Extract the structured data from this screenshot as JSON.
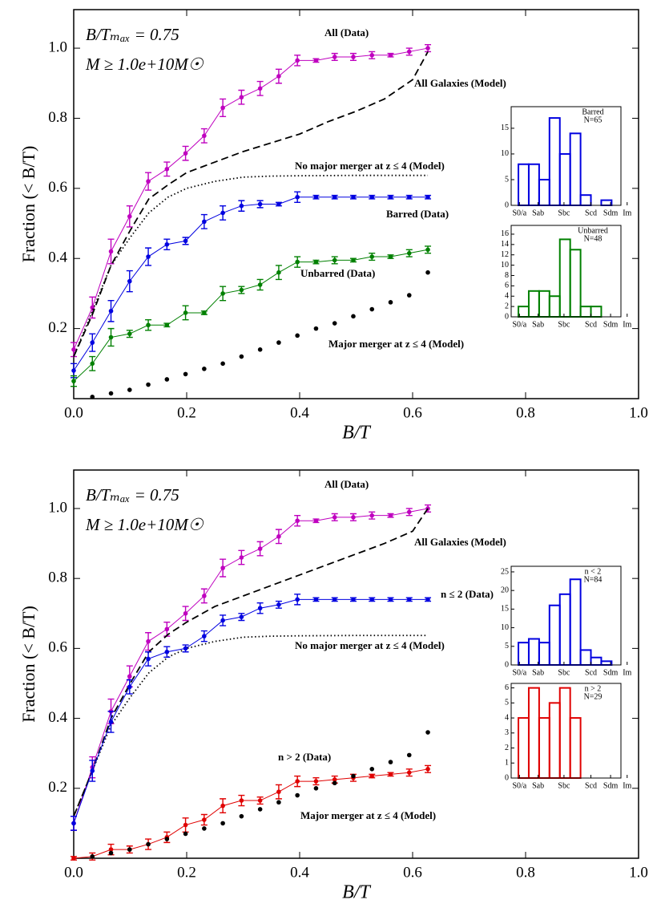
{
  "chart_data": [
    {
      "type": "line",
      "annotations": [
        "B/Tₘₐₓ = 0.75",
        "M ≥ 1.0e+10M☉"
      ],
      "x_label": "B/T",
      "y_label": "Fraction (< B/T)",
      "xlim": [
        0,
        1
      ],
      "ylim": [
        0,
        1.11
      ],
      "xticks": [
        {
          "value": 0,
          "label": "0.0"
        },
        0.2,
        0.4,
        0.6,
        0.8,
        {
          "value": 1,
          "label": "1.0"
        }
      ],
      "yticks": [
        0.2,
        0.4,
        0.6,
        0.8,
        {
          "value": 1,
          "label": "1.0"
        }
      ],
      "series": [
        {
          "name": "All (Data)",
          "color": "#bf00bf",
          "style": "solid",
          "x": [
            0,
            0.033,
            0.066,
            0.099,
            0.132,
            0.165,
            0.198,
            0.231,
            0.264,
            0.297,
            0.33,
            0.363,
            0.396,
            0.429,
            0.462,
            0.495,
            0.528,
            0.561,
            0.594,
            0.627
          ],
          "values": [
            0.14,
            0.26,
            0.42,
            0.52,
            0.62,
            0.655,
            0.7,
            0.75,
            0.83,
            0.86,
            0.885,
            0.92,
            0.965,
            0.965,
            0.975,
            0.975,
            0.98,
            0.98,
            0.99,
            1.0
          ],
          "errors": [
            0.02,
            0.03,
            0.035,
            0.03,
            0.025,
            0.02,
            0.02,
            0.02,
            0.025,
            0.02,
            0.02,
            0.02,
            0.015,
            0.005,
            0.01,
            0.01,
            0.01,
            0.005,
            0.01,
            0.01
          ]
        },
        {
          "name": "All Galaxies (Model)",
          "color": "#000000",
          "style": "dashed",
          "x": [
            0,
            0.033,
            0.066,
            0.1,
            0.133,
            0.167,
            0.2,
            0.25,
            0.3,
            0.35,
            0.4,
            0.45,
            0.5,
            0.55,
            0.6,
            0.627
          ],
          "values": [
            0.12,
            0.24,
            0.38,
            0.48,
            0.57,
            0.61,
            0.645,
            0.675,
            0.705,
            0.73,
            0.755,
            0.79,
            0.82,
            0.855,
            0.91,
            0.99
          ]
        },
        {
          "name": "No major merger at z ≤ 4 (Model)",
          "color": "#000000",
          "style": "dotted",
          "x": [
            0,
            0.033,
            0.066,
            0.1,
            0.133,
            0.167,
            0.2,
            0.25,
            0.3,
            0.35,
            0.4,
            0.5,
            0.627
          ],
          "values": [
            0.12,
            0.25,
            0.38,
            0.46,
            0.53,
            0.575,
            0.6,
            0.62,
            0.632,
            0.635,
            0.636,
            0.637,
            0.637
          ]
        },
        {
          "name": "Barred (Data)",
          "color": "#0000e0",
          "style": "solid",
          "x": [
            0,
            0.033,
            0.066,
            0.099,
            0.132,
            0.165,
            0.198,
            0.231,
            0.264,
            0.297,
            0.33,
            0.363,
            0.396,
            0.429,
            0.462,
            0.495,
            0.528,
            0.561,
            0.594,
            0.627
          ],
          "values": [
            0.08,
            0.16,
            0.25,
            0.335,
            0.405,
            0.44,
            0.45,
            0.505,
            0.53,
            0.55,
            0.555,
            0.555,
            0.575,
            0.575,
            0.575,
            0.575,
            0.575,
            0.575,
            0.575,
            0.575
          ],
          "errors": [
            0.02,
            0.025,
            0.03,
            0.03,
            0.025,
            0.015,
            0.01,
            0.02,
            0.02,
            0.015,
            0.01,
            0.005,
            0.015,
            0.005,
            0.005,
            0.005,
            0.005,
            0.005,
            0.005,
            0.005
          ]
        },
        {
          "name": "Unbarred (Data)",
          "color": "#008000",
          "style": "solid",
          "x": [
            0,
            0.033,
            0.066,
            0.099,
            0.132,
            0.165,
            0.198,
            0.231,
            0.264,
            0.297,
            0.33,
            0.363,
            0.396,
            0.429,
            0.462,
            0.495,
            0.528,
            0.561,
            0.594,
            0.627
          ],
          "values": [
            0.05,
            0.1,
            0.175,
            0.185,
            0.21,
            0.21,
            0.245,
            0.245,
            0.3,
            0.31,
            0.325,
            0.36,
            0.39,
            0.39,
            0.395,
            0.395,
            0.405,
            0.405,
            0.415,
            0.425
          ],
          "errors": [
            0.015,
            0.02,
            0.025,
            0.01,
            0.015,
            0.005,
            0.02,
            0.005,
            0.02,
            0.01,
            0.015,
            0.02,
            0.015,
            0.005,
            0.01,
            0.005,
            0.01,
            0.005,
            0.01,
            0.01
          ]
        },
        {
          "name": "Major merger at z ≤ 4 (Model)",
          "color": "#000000",
          "style": "markers",
          "x": [
            0.033,
            0.066,
            0.099,
            0.132,
            0.165,
            0.198,
            0.231,
            0.264,
            0.297,
            0.33,
            0.363,
            0.396,
            0.429,
            0.462,
            0.495,
            0.528,
            0.561,
            0.594,
            0.627
          ],
          "values": [
            0.005,
            0.015,
            0.025,
            0.04,
            0.055,
            0.07,
            0.085,
            0.1,
            0.12,
            0.14,
            0.16,
            0.18,
            0.2,
            0.215,
            0.235,
            0.255,
            0.275,
            0.295,
            0.36
          ]
        }
      ]
    },
    {
      "type": "histogram",
      "annotations": [
        "Barred",
        "N=65"
      ],
      "color": "#0000e0",
      "bins": [
        0,
        1,
        2,
        3,
        4,
        5,
        6,
        7,
        8,
        9
      ],
      "values": [
        8,
        8,
        5,
        17,
        10,
        14,
        2,
        0,
        1
      ],
      "xlim": [
        -0.7,
        9.9
      ],
      "ylim": [
        0,
        19.2
      ],
      "xticks": [
        {
          "value": 0.1,
          "label": "S0/a"
        },
        {
          "value": 1.9,
          "label": "Sab"
        },
        {
          "value": 4.4,
          "label": "Sbc"
        },
        {
          "value": 7,
          "label": "Scd"
        },
        {
          "value": 8.9,
          "label": "Sdm"
        },
        {
          "value": 10.5,
          "label": "Im"
        }
      ],
      "yticks": [
        0,
        5,
        10,
        15
      ]
    },
    {
      "type": "histogram",
      "annotations": [
        "Unbarred",
        "N=48"
      ],
      "color": "#008000",
      "bins": [
        0,
        1,
        2,
        3,
        4,
        5,
        6,
        7,
        8,
        9
      ],
      "values": [
        2,
        5,
        5,
        4,
        15,
        13,
        2,
        2,
        0
      ],
      "xlim": [
        -0.7,
        9.9
      ],
      "ylim": [
        0,
        17.7
      ],
      "xticks": [
        {
          "value": 0.1,
          "label": "S0/a"
        },
        {
          "value": 1.9,
          "label": "Sab"
        },
        {
          "value": 4.4,
          "label": "Sbc"
        },
        {
          "value": 7,
          "label": "Scd"
        },
        {
          "value": 8.9,
          "label": "Sdm"
        },
        {
          "value": 10.5,
          "label": "Im"
        }
      ],
      "yticks": [
        0,
        2,
        4,
        6,
        8,
        10,
        12,
        14,
        16
      ]
    },
    {
      "type": "line",
      "annotations": [
        "B/Tₘₐₓ = 0.75",
        "M ≥ 1.0e+10M☉"
      ],
      "x_label": "B/T",
      "y_label": "Fraction (< B/T)",
      "xlim": [
        0,
        1
      ],
      "ylim": [
        0,
        1.11
      ],
      "xticks": [
        {
          "value": 0,
          "label": "0.0"
        },
        0.2,
        0.4,
        0.6,
        0.8,
        {
          "value": 1,
          "label": "1.0"
        }
      ],
      "yticks": [
        0.2,
        0.4,
        0.6,
        0.8,
        {
          "value": 1,
          "label": "1.0"
        }
      ],
      "series": [
        {
          "name": "All (Data)",
          "color": "#bf00bf",
          "style": "solid",
          "x": [
            0,
            0.033,
            0.066,
            0.099,
            0.132,
            0.165,
            0.198,
            0.231,
            0.264,
            0.297,
            0.33,
            0.363,
            0.396,
            0.429,
            0.462,
            0.495,
            0.528,
            0.561,
            0.594,
            0.627
          ],
          "values": [
            0.1,
            0.26,
            0.42,
            0.52,
            0.62,
            0.655,
            0.7,
            0.75,
            0.83,
            0.86,
            0.885,
            0.92,
            0.965,
            0.965,
            0.975,
            0.975,
            0.98,
            0.98,
            0.99,
            1.0
          ],
          "errors": [
            0.02,
            0.03,
            0.035,
            0.03,
            0.025,
            0.02,
            0.02,
            0.02,
            0.025,
            0.02,
            0.02,
            0.02,
            0.015,
            0.005,
            0.01,
            0.01,
            0.01,
            0.005,
            0.01,
            0.01
          ]
        },
        {
          "name": "All Galaxies (Model)",
          "color": "#000000",
          "style": "dashed",
          "x": [
            0,
            0.033,
            0.066,
            0.1,
            0.133,
            0.167,
            0.2,
            0.25,
            0.3,
            0.35,
            0.4,
            0.45,
            0.5,
            0.55,
            0.6,
            0.627
          ],
          "values": [
            0.12,
            0.25,
            0.4,
            0.5,
            0.59,
            0.64,
            0.675,
            0.72,
            0.75,
            0.78,
            0.81,
            0.84,
            0.87,
            0.9,
            0.935,
            1.0
          ]
        },
        {
          "name": "No major merger at z ≤ 4 (Model)",
          "color": "#000000",
          "style": "dotted",
          "x": [
            0,
            0.033,
            0.066,
            0.1,
            0.133,
            0.167,
            0.2,
            0.25,
            0.3,
            0.35,
            0.4,
            0.5,
            0.627
          ],
          "values": [
            0.12,
            0.25,
            0.38,
            0.46,
            0.53,
            0.575,
            0.6,
            0.62,
            0.632,
            0.635,
            0.636,
            0.637,
            0.637
          ]
        },
        {
          "name": "n ≤ 2 (Data)",
          "color": "#0000e0",
          "style": "solid",
          "x": [
            0,
            0.033,
            0.066,
            0.099,
            0.132,
            0.165,
            0.198,
            0.231,
            0.264,
            0.297,
            0.33,
            0.363,
            0.396,
            0.429,
            0.462,
            0.495,
            0.528,
            0.561,
            0.594,
            0.627
          ],
          "values": [
            0.1,
            0.25,
            0.39,
            0.49,
            0.57,
            0.59,
            0.6,
            0.635,
            0.68,
            0.69,
            0.715,
            0.725,
            0.74,
            0.74,
            0.74,
            0.74,
            0.74,
            0.74,
            0.74,
            0.74
          ],
          "errors": [
            0.02,
            0.03,
            0.03,
            0.02,
            0.02,
            0.015,
            0.01,
            0.015,
            0.015,
            0.01,
            0.015,
            0.01,
            0.015,
            0.005,
            0.005,
            0.005,
            0.005,
            0.005,
            0.005,
            0.005
          ]
        },
        {
          "name": "n > 2 (Data)",
          "color": "#e00000",
          "style": "solid",
          "x": [
            0,
            0.033,
            0.066,
            0.099,
            0.132,
            0.165,
            0.198,
            0.231,
            0.264,
            0.297,
            0.33,
            0.363,
            0.396,
            0.429,
            0.462,
            0.495,
            0.528,
            0.561,
            0.594,
            0.627
          ],
          "values": [
            0,
            0.005,
            0.025,
            0.025,
            0.04,
            0.06,
            0.095,
            0.11,
            0.15,
            0.165,
            0.165,
            0.19,
            0.22,
            0.22,
            0.225,
            0.23,
            0.235,
            0.24,
            0.245,
            0.255
          ],
          "errors": [
            0.005,
            0.01,
            0.015,
            0.01,
            0.015,
            0.015,
            0.02,
            0.015,
            0.02,
            0.015,
            0.01,
            0.02,
            0.015,
            0.01,
            0.01,
            0.01,
            0.005,
            0.005,
            0.01,
            0.01
          ]
        },
        {
          "name": "Major merger at z ≤ 4 (Model)",
          "color": "#000000",
          "style": "markers",
          "x": [
            0.033,
            0.066,
            0.099,
            0.132,
            0.165,
            0.198,
            0.231,
            0.264,
            0.297,
            0.33,
            0.363,
            0.396,
            0.429,
            0.462,
            0.495,
            0.528,
            0.561,
            0.594,
            0.627
          ],
          "values": [
            0.005,
            0.015,
            0.025,
            0.04,
            0.055,
            0.07,
            0.085,
            0.1,
            0.12,
            0.14,
            0.16,
            0.18,
            0.2,
            0.215,
            0.235,
            0.255,
            0.275,
            0.295,
            0.36
          ]
        }
      ]
    },
    {
      "type": "histogram",
      "annotations": [
        "n < 2",
        "N=84"
      ],
      "color": "#0000e0",
      "bins": [
        0,
        1,
        2,
        3,
        4,
        5,
        6,
        7,
        8,
        9
      ],
      "values": [
        6,
        7,
        6,
        16,
        19,
        23,
        4,
        2,
        1
      ],
      "xlim": [
        -0.7,
        9.9
      ],
      "ylim": [
        0,
        26.5
      ],
      "xticks": [
        {
          "value": 0.1,
          "label": "S0/a"
        },
        {
          "value": 1.9,
          "label": "Sab"
        },
        {
          "value": 4.4,
          "label": "Sbc"
        },
        {
          "value": 7,
          "label": "Scd"
        },
        {
          "value": 8.9,
          "label": "Sdm"
        },
        {
          "value": 10.5,
          "label": "Im"
        }
      ],
      "yticks": [
        0,
        5,
        10,
        15,
        20,
        25
      ]
    },
    {
      "type": "histogram",
      "annotations": [
        "n > 2",
        "N=29"
      ],
      "color": "#e00000",
      "bins": [
        0,
        1,
        2,
        3,
        4,
        5,
        6,
        7,
        8,
        9
      ],
      "values": [
        4,
        6,
        4,
        5,
        6,
        4,
        0,
        0,
        0
      ],
      "xlim": [
        -0.7,
        9.9
      ],
      "ylim": [
        0,
        6.3
      ],
      "xticks": [
        {
          "value": 0.1,
          "label": "S0/a"
        },
        {
          "value": 1.9,
          "label": "Sab"
        },
        {
          "value": 4.4,
          "label": "Sbc"
        },
        {
          "value": 7,
          "label": "Scd"
        },
        {
          "value": 8.9,
          "label": "Sdm"
        },
        {
          "value": 10.5,
          "label": "Im"
        }
      ],
      "yticks": [
        0,
        1,
        2,
        3,
        4,
        5,
        6
      ]
    }
  ]
}
